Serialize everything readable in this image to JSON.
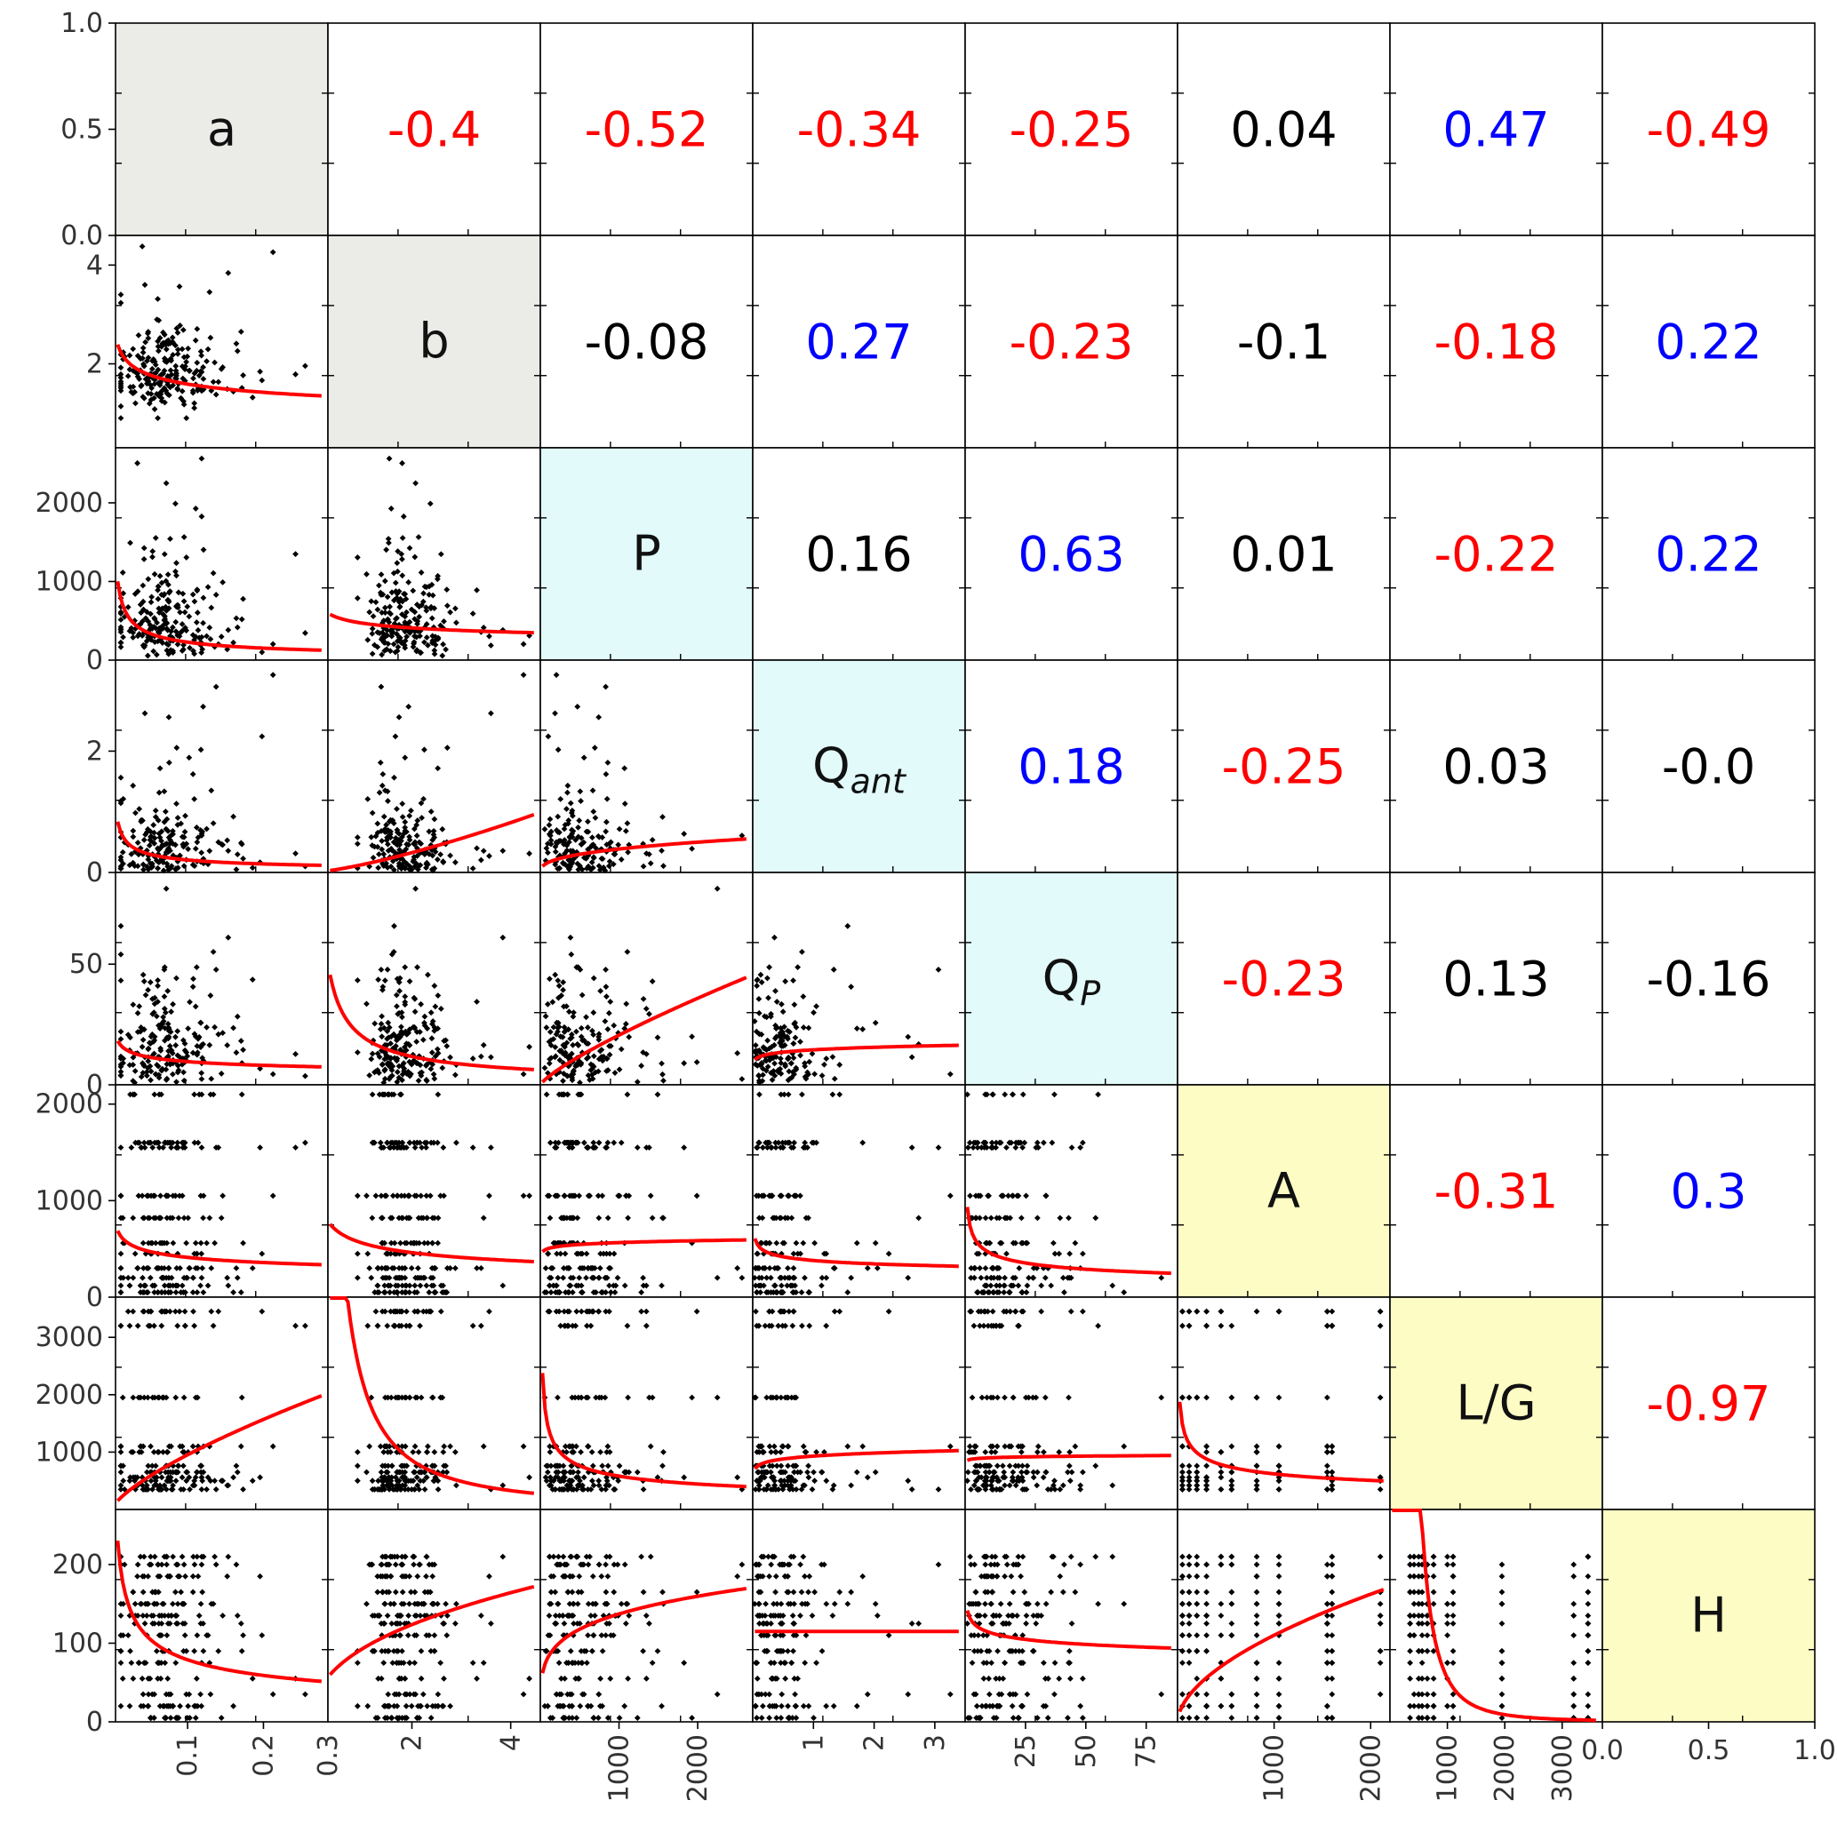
{
  "chart_data": {
    "type": "scatter",
    "variables": [
      "a",
      "b",
      "P",
      "Q_ant",
      "Q_P",
      "A",
      "L/G",
      "H"
    ],
    "diagonal_labels": [
      {
        "main": "a",
        "sub": ""
      },
      {
        "main": "b",
        "sub": ""
      },
      {
        "main": "P",
        "sub": ""
      },
      {
        "main": "Q",
        "sub": "ant"
      },
      {
        "main": "Q",
        "sub": "P"
      },
      {
        "main": "A",
        "sub": ""
      },
      {
        "main": "L/G",
        "sub": ""
      },
      {
        "main": "H",
        "sub": ""
      }
    ],
    "diagonal_colors": [
      "#ebebe8",
      "#ebebe8",
      "#e2fafa",
      "#e2fafa",
      "#e2fafa",
      "#fdfcc4",
      "#fdfcc4",
      "#fdfcc4"
    ],
    "correlations": [
      {
        "row": 0,
        "col": 1,
        "text": "-0.4",
        "color": "#ff0000"
      },
      {
        "row": 0,
        "col": 2,
        "text": "-0.52",
        "color": "#ff0000"
      },
      {
        "row": 0,
        "col": 3,
        "text": "-0.34",
        "color": "#ff0000"
      },
      {
        "row": 0,
        "col": 4,
        "text": "-0.25",
        "color": "#ff0000"
      },
      {
        "row": 0,
        "col": 5,
        "text": "0.04",
        "color": "#000000"
      },
      {
        "row": 0,
        "col": 6,
        "text": "0.47",
        "color": "#0000ff"
      },
      {
        "row": 0,
        "col": 7,
        "text": "-0.49",
        "color": "#ff0000"
      },
      {
        "row": 1,
        "col": 2,
        "text": "-0.08",
        "color": "#000000"
      },
      {
        "row": 1,
        "col": 3,
        "text": "0.27",
        "color": "#0000ff"
      },
      {
        "row": 1,
        "col": 4,
        "text": "-0.23",
        "color": "#ff0000"
      },
      {
        "row": 1,
        "col": 5,
        "text": "-0.1",
        "color": "#000000"
      },
      {
        "row": 1,
        "col": 6,
        "text": "-0.18",
        "color": "#ff0000"
      },
      {
        "row": 1,
        "col": 7,
        "text": "0.22",
        "color": "#0000ff"
      },
      {
        "row": 2,
        "col": 3,
        "text": "0.16",
        "color": "#000000"
      },
      {
        "row": 2,
        "col": 4,
        "text": "0.63",
        "color": "#0000ff"
      },
      {
        "row": 2,
        "col": 5,
        "text": "0.01",
        "color": "#000000"
      },
      {
        "row": 2,
        "col": 6,
        "text": "-0.22",
        "color": "#ff0000"
      },
      {
        "row": 2,
        "col": 7,
        "text": "0.22",
        "color": "#0000ff"
      },
      {
        "row": 3,
        "col": 4,
        "text": "0.18",
        "color": "#0000ff"
      },
      {
        "row": 3,
        "col": 5,
        "text": "-0.25",
        "color": "#ff0000"
      },
      {
        "row": 3,
        "col": 6,
        "text": "0.03",
        "color": "#000000"
      },
      {
        "row": 3,
        "col": 7,
        "text": "-0.0",
        "color": "#000000"
      },
      {
        "row": 4,
        "col": 5,
        "text": "-0.23",
        "color": "#ff0000"
      },
      {
        "row": 4,
        "col": 6,
        "text": "0.13",
        "color": "#000000"
      },
      {
        "row": 4,
        "col": 7,
        "text": "-0.16",
        "color": "#000000"
      },
      {
        "row": 5,
        "col": 6,
        "text": "-0.31",
        "color": "#ff0000"
      },
      {
        "row": 5,
        "col": 7,
        "text": "0.3",
        "color": "#0000ff"
      },
      {
        "row": 6,
        "col": 7,
        "text": "-0.97",
        "color": "#ff0000"
      }
    ],
    "ranges": [
      [
        0.005,
        0.285
      ],
      [
        0.3,
        4.6
      ],
      [
        0,
        2700
      ],
      [
        0,
        3.5
      ],
      [
        0,
        88
      ],
      [
        0,
        2200
      ],
      [
        0,
        3700
      ],
      [
        0,
        270
      ]
    ],
    "row0_ylim": [
      0,
      1
    ],
    "col7_xlim": [
      0,
      1
    ],
    "yticks": [
      [
        "0.0",
        "0.5",
        "1.0"
      ],
      [
        2,
        4
      ],
      [
        0,
        1000,
        2000
      ],
      [
        0,
        2
      ],
      [
        0,
        50
      ],
      [
        0,
        1000,
        2000
      ],
      [
        1000,
        2000,
        3000
      ],
      [
        0,
        100,
        200
      ]
    ],
    "row0_ytick_values": [
      0,
      0.5,
      1
    ],
    "xticks": [
      [
        0.1,
        0.2
      ],
      [
        2,
        4
      ],
      [
        1000,
        2000
      ],
      [
        1,
        2,
        3
      ],
      [
        25,
        50,
        75
      ],
      [
        1000,
        2000
      ],
      [
        1000,
        2000,
        3000
      ],
      [
        "0.0",
        "0.5",
        "1.0"
      ]
    ],
    "col7_xtick_values": [
      0,
      0.5,
      1
    ],
    "tick_label_overrides": {
      "bottom_col0_last": "0.3",
      "left_row1_first_hidden": false
    },
    "fit_color": "#ff0000",
    "fits": [
      {
        "row": 1,
        "col": 0,
        "type": "power",
        "a": 1.1,
        "b": -0.16
      },
      {
        "row": 2,
        "col": 0,
        "type": "power",
        "a": 60,
        "b": -0.58
      },
      {
        "row": 2,
        "col": 1,
        "type": "power",
        "a": 470,
        "b": -0.2
      },
      {
        "row": 3,
        "col": 0,
        "type": "power",
        "a": 0.058,
        "b": -0.55
      },
      {
        "row": 3,
        "col": 1,
        "type": "power",
        "a": 0.13,
        "b": 1.33
      },
      {
        "row": 3,
        "col": 2,
        "type": "power",
        "a": 0.03,
        "b": 0.37
      },
      {
        "row": 4,
        "col": 0,
        "type": "power",
        "a": 5.4,
        "b": -0.25
      },
      {
        "row": 4,
        "col": 1,
        "type": "power",
        "a": 20,
        "b": -0.77
      },
      {
        "row": 4,
        "col": 2,
        "type": "power",
        "a": 0.082,
        "b": 0.8
      },
      {
        "row": 4,
        "col": 3,
        "type": "power",
        "a": 14.5,
        "b": 0.1
      },
      {
        "row": 5,
        "col": 0,
        "type": "power",
        "a": 260,
        "b": -0.2
      },
      {
        "row": 5,
        "col": 1,
        "type": "power",
        "a": 560,
        "b": -0.28
      },
      {
        "row": 5,
        "col": 2,
        "type": "power",
        "a": 400,
        "b": 0.05
      },
      {
        "row": 5,
        "col": 3,
        "type": "power",
        "a": 380,
        "b": -0.14
      },
      {
        "row": 5,
        "col": 4,
        "type": "power",
        "a": 900,
        "b": -0.29
      },
      {
        "row": 6,
        "col": 0,
        "type": "power",
        "a": 5000,
        "b": 0.72
      },
      {
        "row": 6,
        "col": 1,
        "type": "power",
        "a": 2230,
        "b": -1.38
      },
      {
        "row": 6,
        "col": 2,
        "type": "power",
        "a": 8600,
        "b": -0.39
      },
      {
        "row": 6,
        "col": 3,
        "type": "power",
        "a": 930,
        "b": 0.08
      },
      {
        "row": 6,
        "col": 4,
        "type": "power",
        "a": 860,
        "b": 0.02
      },
      {
        "row": 6,
        "col": 5,
        "type": "power",
        "a": 4600,
        "b": -0.29
      },
      {
        "row": 7,
        "col": 0,
        "type": "power",
        "a": 30,
        "b": -0.42
      },
      {
        "row": 7,
        "col": 1,
        "type": "power",
        "a": 93,
        "b": 0.41
      },
      {
        "row": 7,
        "col": 2,
        "type": "power",
        "a": 30,
        "b": 0.22
      },
      {
        "row": 7,
        "col": 3,
        "type": "power",
        "a": 115,
        "b": 0.0
      },
      {
        "row": 7,
        "col": 4,
        "type": "power",
        "a": 140,
        "b": -0.09
      },
      {
        "row": 7,
        "col": 5,
        "type": "power",
        "a": 2.3,
        "b": 0.56
      },
      {
        "row": 7,
        "col": 6,
        "type": "power",
        "a": 3500000000,
        "b": -2.6
      }
    ],
    "point_distributions": [
      {
        "kind": "skew",
        "lo": 0.012,
        "hi": 0.27,
        "mode": 0.06,
        "spread": 0.04,
        "cap": 0.28
      },
      {
        "kind": "skew",
        "lo": 0.9,
        "hi": 4.4,
        "mode": 1.7,
        "spread": 0.45,
        "cap": 4.5
      },
      {
        "kind": "skew",
        "lo": 20,
        "hi": 2600,
        "mode": 350,
        "spread": 320,
        "cap": 2650
      },
      {
        "kind": "skew",
        "lo": 0.02,
        "hi": 3.3,
        "mode": 0.2,
        "spread": 0.35,
        "cap": 3.4
      },
      {
        "kind": "skew",
        "lo": 0.5,
        "hi": 86,
        "mode": 10,
        "spread": 12,
        "cap": 86
      },
      {
        "kind": "levels",
        "levels": [
          50,
          120,
          200,
          300,
          450,
          560,
          820,
          1050,
          1550,
          1600,
          2100
        ]
      },
      {
        "kind": "levels",
        "levels": [
          350,
          420,
          500,
          560,
          650,
          760,
          1000,
          1100,
          1950,
          3200,
          3450,
          3700
        ]
      },
      {
        "kind": "levels",
        "levels": [
          5,
          20,
          35,
          55,
          75,
          90,
          110,
          125,
          135,
          150,
          165,
          185,
          200,
          210
        ]
      }
    ],
    "n_points": 230,
    "title": "",
    "xlabel": "",
    "ylabel": "",
    "grid": false,
    "legend": "none"
  }
}
